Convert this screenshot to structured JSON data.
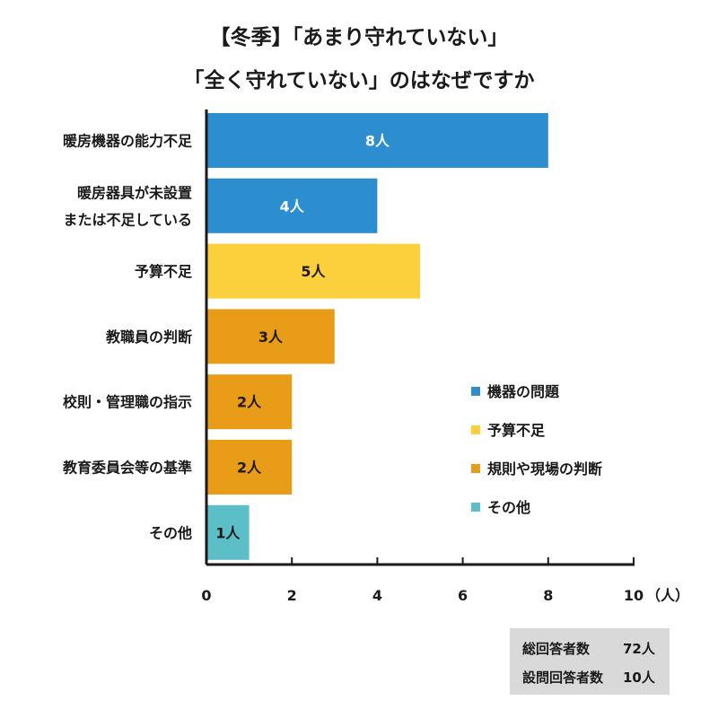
{
  "title": {
    "line1": "【冬季】「あまり守れていない」",
    "line2": "「全く守れていない」のはなぜですか"
  },
  "colors": {
    "equipment": "#2c8dcf",
    "budget": "#fcd03c",
    "rules": "#e99c17",
    "other": "#5cbec6"
  },
  "chart_data": {
    "type": "bar",
    "orientation": "horizontal",
    "categories": [
      [
        "暖房機器の能力不足"
      ],
      [
        "暖房器具が未設置",
        "または不足している"
      ],
      [
        "予算不足"
      ],
      [
        "教職員の判断"
      ],
      [
        "校則・管理職の指示"
      ],
      [
        "教育委員会等の基準"
      ],
      [
        "その他"
      ]
    ],
    "values": [
      8,
      4,
      5,
      3,
      2,
      2,
      1
    ],
    "value_labels": [
      "8人",
      "4人",
      "5人",
      "3人",
      "2人",
      "2人",
      "1人"
    ],
    "groups": [
      "equipment",
      "equipment",
      "budget",
      "rules",
      "rules",
      "rules",
      "other"
    ],
    "xlim": [
      0,
      10
    ],
    "xticks": [
      "0",
      "2",
      "4",
      "6",
      "8",
      "10"
    ],
    "xlabel": "（人）",
    "legend": [
      {
        "label": "機器の問題",
        "group": "equipment"
      },
      {
        "label": "予算不足",
        "group": "budget"
      },
      {
        "label": "規則や現場の判断",
        "group": "rules"
      },
      {
        "label": "その他",
        "group": "other"
      }
    ],
    "legend_position": "right"
  },
  "stats": [
    {
      "label": "総回答者数",
      "value": "72人"
    },
    {
      "label": "設問回答者数",
      "value": "10人"
    }
  ]
}
